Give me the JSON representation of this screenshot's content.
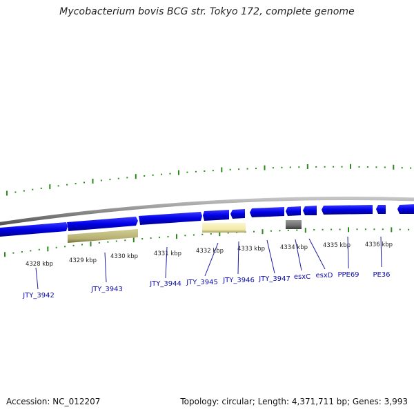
{
  "title": "Mycobacterium bovis BCG str. Tokyo 172, complete genome",
  "footer": {
    "accession": "Accession: NC_012207",
    "summary": "Topology: circular; Length: 4,371,711 bp; Genes: 3,993"
  },
  "colors": {
    "backbone": "#8c8c8c",
    "gene_forward": "#0000e6",
    "gene_label": "#0a0aa8",
    "tick": "#2a8a1a",
    "tick_label": "#222222",
    "feature_olive": "#b5b070",
    "feature_yellow": "#f2e9a6",
    "feature_gray": "#6e6e6e"
  },
  "ruler": {
    "unit": "kbp",
    "labels": [
      {
        "text": "4328 kbp"
      },
      {
        "text": "4329 kbp"
      },
      {
        "text": "4330 kbp"
      },
      {
        "text": "4331 kbp"
      },
      {
        "text": "4332 kbp"
      },
      {
        "text": "4333 kbp"
      },
      {
        "text": "4334 kbp"
      },
      {
        "text": "4335 kbp"
      },
      {
        "text": "4336 kbp"
      }
    ]
  },
  "genes": [
    {
      "name": "JTY_3942"
    },
    {
      "name": "JTY_3943"
    },
    {
      "name": "JTY_3944"
    },
    {
      "name": "JTY_3945"
    },
    {
      "name": "JTY_3946"
    },
    {
      "name": "JTY_3947"
    },
    {
      "name": "esxC"
    },
    {
      "name": "esxD"
    },
    {
      "name": "PPE69"
    },
    {
      "name": "PE36"
    }
  ]
}
